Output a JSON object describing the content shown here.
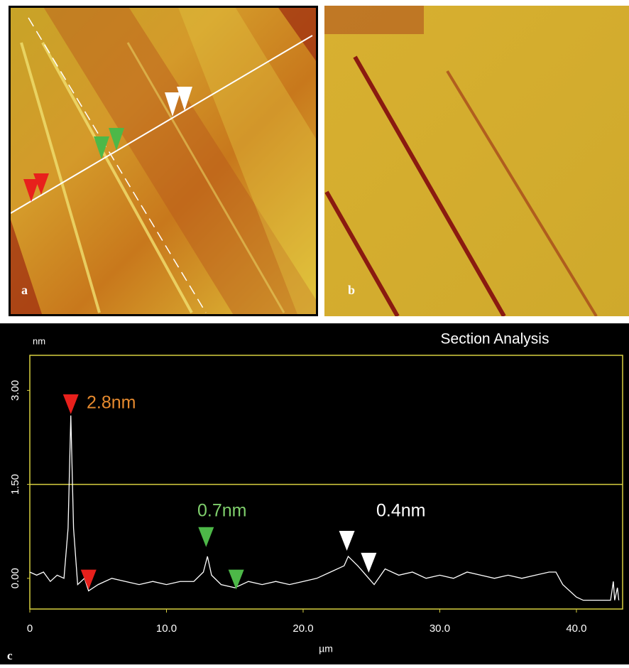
{
  "chart_data": {
    "type": "line",
    "title": "Section Analysis",
    "x_label": "µm",
    "y_label": "nm",
    "xlim": [
      0,
      43.38
    ],
    "ylim": [
      -0.49,
      3.56
    ],
    "xticks": [
      0,
      {
        "value": 10,
        "label": "10.0"
      },
      {
        "value": 20,
        "label": "20.0"
      },
      {
        "value": 30,
        "label": "30.0"
      },
      {
        "value": 40,
        "label": "40.0"
      }
    ],
    "yticks": [
      {
        "value": 0,
        "label": "0.00"
      },
      {
        "value": 1.5,
        "label": "1.50"
      },
      {
        "value": 3,
        "label": "3.00"
      }
    ],
    "reference_lines": [
      1.5
    ],
    "series": [
      {
        "color": "#ffffff",
        "x": [
          0,
          0.5,
          1,
          1.5,
          2,
          2.5,
          2.8,
          3.0,
          3.2,
          3.5,
          4,
          4.3,
          5,
          6,
          7,
          8,
          9,
          10,
          11,
          12,
          12.7,
          13,
          13.3,
          14,
          15,
          16,
          17,
          18,
          19,
          20,
          21,
          22,
          23,
          23.3,
          24,
          24.8,
          25.2,
          26,
          27,
          28,
          29,
          30,
          31,
          32,
          33,
          34,
          35,
          36,
          37,
          38,
          38.5,
          39,
          40,
          40.5,
          41,
          42,
          42.5,
          42.7,
          42.8,
          43,
          43.1
        ],
        "values": [
          0.1,
          0.05,
          0.1,
          -0.05,
          0.05,
          0.0,
          0.8,
          2.6,
          0.8,
          -0.1,
          0.0,
          -0.2,
          -0.1,
          0.0,
          -0.05,
          -0.1,
          -0.05,
          -0.1,
          -0.05,
          -0.05,
          0.1,
          0.35,
          0.05,
          -0.1,
          -0.15,
          -0.05,
          -0.1,
          -0.05,
          -0.1,
          -0.05,
          0.0,
          0.1,
          0.2,
          0.35,
          0.2,
          0.0,
          -0.1,
          0.15,
          0.05,
          0.1,
          0.0,
          0.05,
          0.0,
          0.1,
          0.05,
          0.0,
          0.05,
          0.0,
          0.05,
          0.1,
          0.1,
          -0.1,
          -0.3,
          -0.35,
          -0.35,
          -0.35,
          -0.35,
          -0.05,
          -0.35,
          -0.15,
          -0.35
        ]
      }
    ],
    "cursors": [
      {
        "x": 3.0,
        "y": 2.62,
        "color": "#e8201c"
      },
      {
        "x": 4.3,
        "y": -0.18,
        "color": "#e8201c"
      },
      {
        "x": 12.9,
        "y": 0.5,
        "color": "#4db848"
      },
      {
        "x": 15.1,
        "y": -0.18,
        "color": "#4db848"
      },
      {
        "x": 23.2,
        "y": 0.44,
        "color": "#ffffff"
      },
      {
        "x": 24.8,
        "y": 0.09,
        "color": "#ffffff"
      }
    ],
    "annotations": [
      {
        "text": "2.8nm",
        "color": "#e68a2e"
      },
      {
        "text": "0.7nm",
        "color": "#7fcf6c"
      },
      {
        "text": "0.4nm",
        "color": "#ffffff"
      }
    ]
  },
  "panel_labels": [
    "a",
    "b",
    "c"
  ]
}
